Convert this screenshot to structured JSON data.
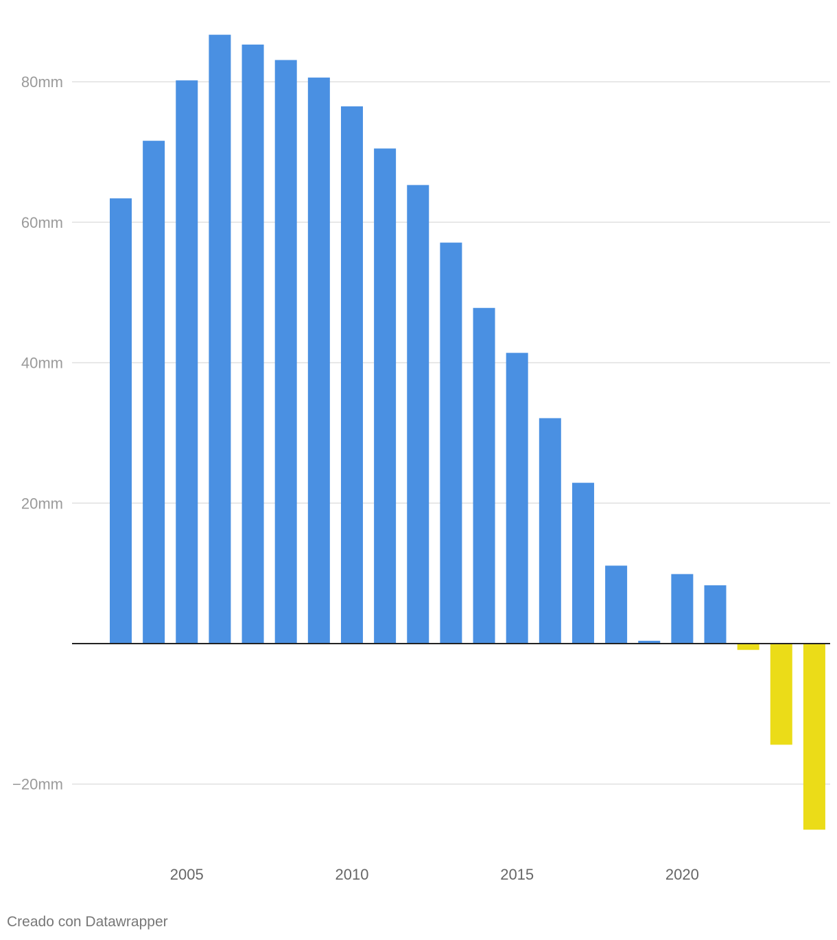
{
  "chart_data": {
    "type": "bar",
    "categories": [
      "2003",
      "2004",
      "2005",
      "2006",
      "2007",
      "2008",
      "2009",
      "2010",
      "2011",
      "2012",
      "2013",
      "2014",
      "2015",
      "2016",
      "2017",
      "2018",
      "2019",
      "2020",
      "2021",
      "2022",
      "2023",
      "2024"
    ],
    "values": [
      63.4,
      71.6,
      80.2,
      86.7,
      85.3,
      83.1,
      80.6,
      76.5,
      70.5,
      65.3,
      57.1,
      47.8,
      41.4,
      32.1,
      22.9,
      11.1,
      0.4,
      9.9,
      8.3,
      -0.9,
      -14.4,
      -26.5
    ],
    "positive_color": "#4a90e2",
    "negative_color": "#ebdc18",
    "y_ticks": [
      {
        "value": 80,
        "label": "80mm"
      },
      {
        "value": 60,
        "label": "60mm"
      },
      {
        "value": 40,
        "label": "40mm"
      },
      {
        "value": 20,
        "label": "20mm"
      },
      {
        "value": -20,
        "label": "−20mm"
      }
    ],
    "x_ticks": [
      "2005",
      "2010",
      "2015",
      "2020"
    ],
    "ylim": [
      -28,
      88
    ],
    "grid": true,
    "legend": "none"
  },
  "footer": {
    "credit": "Creado con Datawrapper"
  }
}
